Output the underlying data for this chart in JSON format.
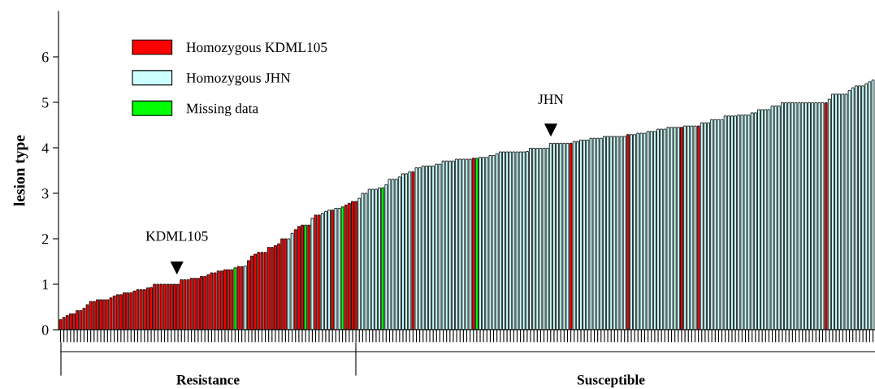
{
  "chart_data": {
    "type": "bar",
    "ylabel": "lesion type",
    "annotations": [
      "KDML105",
      "JHN",
      "Resistance",
      "Susceptible"
    ],
    "ylim": [
      0,
      7
    ],
    "yticks": [
      0,
      1,
      2,
      3,
      4,
      5,
      6
    ],
    "legend": "top left",
    "grid": false,
    "categories": [
      null,
      null,
      null,
      null,
      null,
      null,
      null,
      null,
      null,
      null,
      null,
      null,
      null,
      null,
      null,
      null,
      null,
      null,
      null,
      null,
      null,
      null,
      null,
      null,
      null,
      null,
      null,
      null,
      null,
      null,
      null,
      null,
      null,
      null,
      null,
      null,
      null,
      null,
      null,
      null,
      null,
      null,
      null,
      null,
      null,
      null,
      null,
      null,
      null,
      null,
      null,
      null,
      null,
      null,
      null,
      null,
      null,
      null,
      null,
      null,
      null,
      null,
      null,
      null,
      null,
      null,
      null,
      null,
      null,
      null,
      null,
      null,
      null,
      null,
      null,
      null,
      null,
      null,
      null,
      null,
      null,
      null,
      null,
      null,
      null,
      null,
      null,
      null,
      null,
      null,
      null,
      null,
      null,
      null,
      null,
      null,
      null,
      null,
      null,
      null,
      null,
      null,
      null,
      null,
      null,
      null,
      null,
      null,
      null,
      null,
      null,
      null,
      null,
      null,
      null,
      null,
      null,
      null,
      null,
      null,
      null,
      null,
      null,
      null,
      null,
      null,
      null,
      null,
      null,
      null,
      null,
      null,
      null,
      null,
      null,
      null,
      null,
      null,
      null,
      null,
      null,
      null,
      null,
      null,
      null,
      null,
      null,
      null,
      null,
      null,
      null,
      null,
      null,
      null,
      null,
      null,
      null,
      null,
      null,
      null,
      null,
      null,
      null,
      null,
      null,
      null,
      null,
      null,
      null,
      null,
      null,
      null,
      null,
      null,
      null,
      null,
      null,
      null,
      null,
      null,
      null,
      null,
      null,
      null,
      null,
      null,
      null,
      null,
      null,
      null,
      null,
      null,
      null,
      null,
      null,
      null,
      null,
      null,
      null,
      null,
      null,
      null,
      null,
      null,
      null,
      null,
      null,
      null,
      null,
      null,
      null,
      null,
      null,
      null,
      null,
      null,
      null,
      null,
      null,
      null,
      null,
      null,
      null,
      null,
      null,
      null,
      null,
      null,
      null,
      null,
      null,
      null,
      null,
      null,
      null,
      null,
      null,
      null,
      null,
      null,
      null,
      null,
      null
    ],
    "series": [
      {
        "name": "Homozygous KDML105",
        "color": "#ff0000",
        "values": [
          0.22,
          0.27,
          0.31,
          0.35,
          0.35,
          0.42,
          0.42,
          0.47,
          0.55,
          0.62,
          0.62,
          0.66,
          0.66,
          0.66,
          0.66,
          0.7,
          0.74,
          0.77,
          0.77,
          0.81,
          0.81,
          0.81,
          0.85,
          0.88,
          0.88,
          0.88,
          0.92,
          0.93,
          1.0,
          1.0,
          1.0,
          1.0,
          1.0,
          1.0,
          1.0,
          1.0,
          1.1,
          1.1,
          1.1,
          1.13,
          1.13,
          1.13,
          1.17,
          1.17,
          1.21,
          1.25,
          1.25,
          1.29,
          1.29,
          1.32,
          1.32,
          1.32,
          null,
          1.39,
          1.39,
          null,
          1.52,
          1.62,
          1.66,
          1.7,
          1.7,
          1.7,
          1.81,
          1.81,
          1.85,
          1.89,
          2.0,
          2.0,
          null,
          null,
          2.2,
          2.27,
          2.3,
          null,
          2.3,
          null,
          2.52,
          2.52,
          null,
          null,
          null,
          2.63,
          null,
          null,
          null,
          2.74,
          2.78,
          2.82,
          2.82,
          null,
          null,
          null,
          null,
          null,
          null,
          null,
          null,
          null,
          null,
          null,
          null,
          null,
          null,
          null,
          null,
          3.47,
          null,
          null,
          null,
          null,
          null,
          null,
          null,
          null,
          null,
          null,
          null,
          null,
          null,
          null,
          null,
          null,
          null,
          3.77,
          null,
          null,
          null,
          null,
          null,
          null,
          null,
          null,
          null,
          null,
          null,
          null,
          null,
          null,
          null,
          null,
          null,
          null,
          null,
          null,
          null,
          null,
          null,
          null,
          null,
          null,
          null,
          null,
          4.1,
          null,
          null,
          null,
          null,
          null,
          null,
          null,
          null,
          null,
          null,
          null,
          null,
          null,
          null,
          null,
          null,
          4.29,
          null,
          null,
          null,
          null,
          null,
          null,
          null,
          null,
          null,
          null,
          null,
          null,
          null,
          null,
          null,
          4.45,
          null,
          null,
          null,
          null,
          4.48,
          null,
          null,
          null,
          null,
          null,
          null,
          null,
          null,
          null,
          null,
          null,
          null,
          null,
          null,
          null,
          null,
          null,
          null,
          null,
          null,
          null,
          null,
          null,
          null,
          null,
          null,
          null,
          null,
          null,
          null,
          null,
          null,
          null,
          null,
          null,
          null,
          null,
          4.99,
          null,
          null,
          null,
          null,
          null,
          null,
          null,
          null,
          null,
          null,
          null,
          null,
          null,
          null
        ]
      },
      {
        "name": "Homozygous JHN",
        "color": "#ccffff",
        "values": [
          null,
          null,
          null,
          null,
          null,
          null,
          null,
          null,
          null,
          null,
          null,
          null,
          null,
          null,
          null,
          null,
          null,
          null,
          null,
          null,
          null,
          null,
          null,
          null,
          null,
          null,
          null,
          null,
          null,
          null,
          null,
          null,
          null,
          null,
          null,
          null,
          null,
          null,
          null,
          null,
          null,
          null,
          null,
          null,
          null,
          null,
          null,
          null,
          null,
          null,
          null,
          null,
          null,
          null,
          null,
          1.4,
          null,
          null,
          null,
          null,
          null,
          null,
          null,
          null,
          null,
          null,
          null,
          null,
          2.0,
          2.12,
          null,
          null,
          null,
          null,
          null,
          2.45,
          null,
          null,
          2.56,
          2.6,
          2.63,
          null,
          2.67,
          2.67,
          null,
          null,
          null,
          null,
          null,
          2.89,
          3.0,
          3.0,
          3.09,
          3.09,
          3.09,
          3.12,
          null,
          3.19,
          3.31,
          3.31,
          3.31,
          3.36,
          3.43,
          3.43,
          3.47,
          null,
          3.56,
          3.56,
          3.6,
          3.6,
          3.6,
          3.6,
          3.64,
          3.64,
          3.71,
          3.71,
          3.71,
          3.71,
          3.75,
          3.75,
          3.75,
          3.75,
          3.75,
          null,
          null,
          3.79,
          3.79,
          3.79,
          3.83,
          3.83,
          3.87,
          3.91,
          3.91,
          3.91,
          3.91,
          3.91,
          3.91,
          3.91,
          3.91,
          3.92,
          3.99,
          3.99,
          3.99,
          3.99,
          3.99,
          3.99,
          4.1,
          4.1,
          4.1,
          4.1,
          4.1,
          4.1,
          null,
          4.14,
          4.14,
          4.17,
          4.17,
          4.17,
          4.21,
          4.21,
          4.21,
          4.21,
          4.25,
          4.25,
          4.25,
          4.25,
          4.25,
          4.25,
          4.25,
          null,
          4.29,
          4.29,
          4.32,
          4.32,
          4.32,
          4.36,
          4.36,
          4.36,
          4.41,
          4.41,
          4.41,
          4.45,
          4.45,
          4.45,
          4.45,
          null,
          4.48,
          4.48,
          4.48,
          4.48,
          null,
          4.55,
          4.55,
          4.55,
          4.62,
          4.62,
          4.62,
          4.62,
          4.7,
          4.7,
          4.7,
          4.7,
          4.72,
          4.72,
          4.72,
          4.72,
          4.77,
          4.77,
          4.84,
          4.84,
          4.84,
          4.84,
          4.92,
          4.92,
          4.92,
          4.99,
          4.99,
          4.99,
          4.99,
          4.99,
          4.99,
          4.99,
          4.99,
          4.99,
          4.99,
          4.99,
          4.99,
          4.99,
          null,
          5.07,
          5.18,
          5.18,
          5.18,
          5.18,
          5.18,
          5.26,
          5.32,
          5.36,
          5.36,
          5.36,
          5.41,
          5.45,
          5.49
        ]
      },
      {
        "name": "Missing data",
        "color": "#00ff00",
        "values": [
          null,
          null,
          null,
          null,
          null,
          null,
          null,
          null,
          null,
          null,
          null,
          null,
          null,
          null,
          null,
          null,
          null,
          null,
          null,
          null,
          null,
          null,
          null,
          null,
          null,
          null,
          null,
          null,
          null,
          null,
          null,
          null,
          null,
          null,
          null,
          null,
          null,
          null,
          null,
          null,
          null,
          null,
          null,
          null,
          null,
          null,
          null,
          null,
          null,
          null,
          null,
          null,
          1.36,
          null,
          null,
          null,
          null,
          null,
          null,
          null,
          null,
          null,
          null,
          null,
          null,
          null,
          null,
          null,
          null,
          null,
          null,
          null,
          null,
          2.3,
          null,
          null,
          null,
          null,
          null,
          null,
          null,
          null,
          null,
          null,
          2.7,
          null,
          null,
          null,
          null,
          null,
          null,
          null,
          null,
          null,
          null,
          null,
          3.12,
          null,
          null,
          null,
          null,
          null,
          null,
          null,
          null,
          null,
          null,
          null,
          null,
          null,
          null,
          null,
          null,
          null,
          null,
          null,
          null,
          null,
          null,
          null,
          null,
          null,
          null,
          null,
          3.77,
          null,
          null,
          null,
          null,
          null,
          null,
          null,
          null,
          null,
          null,
          null,
          null,
          null,
          null,
          null,
          null,
          null,
          null,
          null,
          null,
          null,
          null,
          null,
          null,
          null,
          null,
          null,
          null,
          null,
          null,
          null,
          null,
          null,
          null,
          null,
          null,
          null,
          null,
          null,
          null,
          null,
          null,
          null,
          null,
          null,
          null,
          null,
          null,
          null,
          null,
          null,
          null,
          null,
          null,
          null,
          null,
          null,
          null,
          null,
          null,
          null,
          null,
          null,
          null,
          null,
          null,
          null,
          null,
          null,
          null,
          null,
          null,
          null,
          null,
          null,
          null,
          null,
          null,
          null,
          null,
          null,
          null,
          null,
          null,
          null,
          null,
          null,
          null,
          null,
          null,
          null,
          null,
          null,
          null,
          null,
          null,
          null,
          null,
          null,
          null,
          null,
          null,
          null,
          null,
          null,
          null,
          null,
          null,
          null,
          null,
          null,
          null,
          null,
          null,
          null,
          null,
          null,
          null
        ]
      }
    ]
  }
}
